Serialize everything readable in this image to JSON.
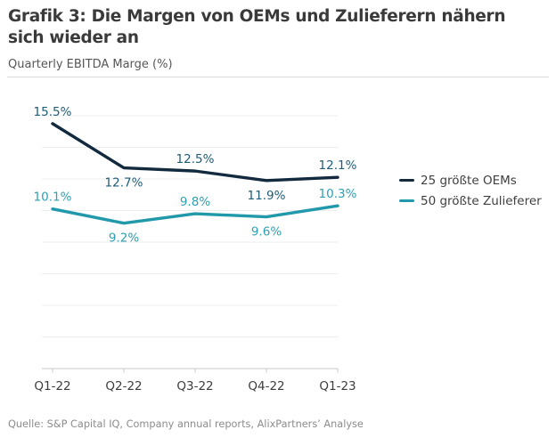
{
  "header": {
    "title": "Grafik 3: Die Margen von OEMs und Zulieferern nähern sich wieder an",
    "title_line1": "Grafik 3: Die Margen von OEMs und Zulieferern nähern",
    "title_line2": "sich wieder an",
    "subtitle": "Quarterly EBITDA Marge (%)"
  },
  "footer": {
    "source": "Quelle: S&P Capital IQ, Company annual reports, AlixPartners’ Analyse"
  },
  "colors": {
    "oem_line": "#132a3e",
    "oem_label": "#1f5c78",
    "supplier_line": "#2199ab",
    "supplier_label": "#2da0b2",
    "gridline": "#ededed",
    "axis": "#c9c9c9",
    "axis_text": "#3d3d3d"
  },
  "chart_data": {
    "type": "line",
    "title": "Grafik 3: Die Margen von OEMs und Zulieferern nähern sich wieder an",
    "subtitle": "Quarterly EBITDA Marge (%)",
    "categories": [
      "Q1-22",
      "Q2-22",
      "Q3-22",
      "Q4-22",
      "Q1-23"
    ],
    "series": [
      {
        "name": "25 größte OEMs",
        "values": [
          15.5,
          12.7,
          12.5,
          11.9,
          12.1
        ],
        "color": "#132a3e",
        "label_color": "#1f5c78",
        "label_positions": [
          "above",
          "below",
          "above",
          "below",
          "above"
        ]
      },
      {
        "name": "50 größte Zulieferer",
        "values": [
          10.1,
          9.2,
          9.8,
          9.6,
          10.3
        ],
        "color": "#2199ab",
        "label_color": "#2da0b2",
        "label_positions": [
          "above",
          "below",
          "above",
          "below",
          "above"
        ]
      }
    ],
    "value_suffix": "%",
    "xlabel": "",
    "ylabel": "",
    "ylim": [
      0,
      16
    ],
    "grid_step": 2,
    "grid": "horizontal-faint",
    "y_axis_labels": "hidden",
    "legend_position": "right",
    "data_labels": "visible"
  }
}
